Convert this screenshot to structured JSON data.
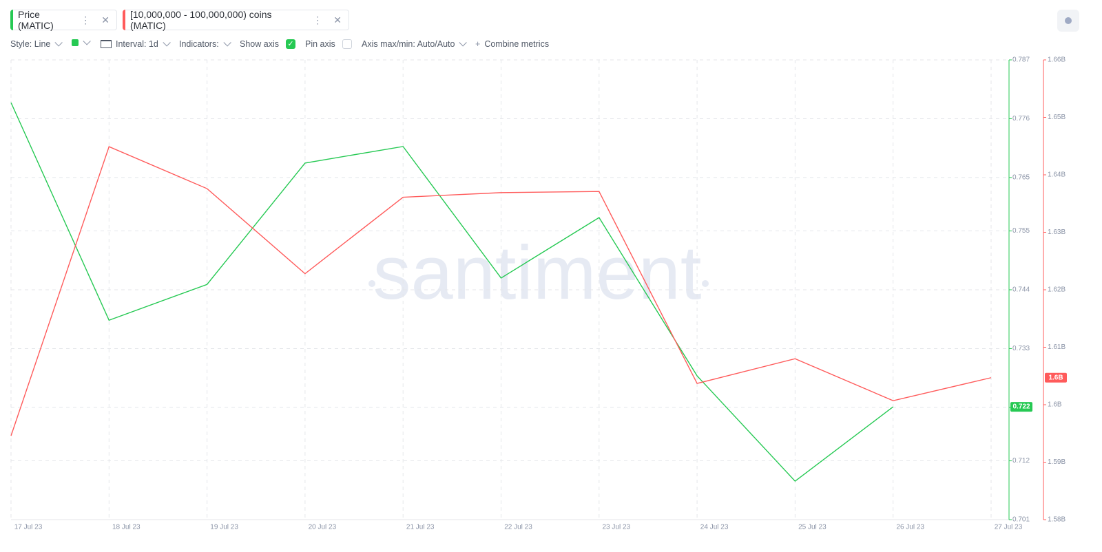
{
  "chart_data": {
    "type": "line",
    "categories": [
      "17 Jul 23",
      "18 Jul 23",
      "19 Jul 23",
      "20 Jul 23",
      "21 Jul 23",
      "22 Jul 23",
      "23 Jul 23",
      "24 Jul 23",
      "25 Jul 23",
      "26 Jul 23",
      "27 Jul 23"
    ],
    "series": [
      {
        "name": "Price (MATIC)",
        "color": "#26c953",
        "axis": "y",
        "values": [
          0.779,
          0.7383,
          0.745,
          0.7677,
          0.7708,
          0.7462,
          0.7575,
          0.7279,
          0.7082,
          0.7221,
          null
        ],
        "value_labels": [
          null,
          null,
          null,
          null,
          null,
          null,
          null,
          null,
          null,
          "0.722",
          null
        ]
      },
      {
        "name": "[10,000,000 - 100,000,000) coins (MATIC)",
        "color": "#ff5b5b",
        "axis": "y2",
        "values": [
          1594600000,
          1644900000,
          1637600000,
          1622800000,
          1636100000,
          1636900000,
          1637100000,
          1603700000,
          1608000000,
          1600700000,
          1604700000
        ],
        "value_labels": [
          null,
          null,
          null,
          null,
          null,
          null,
          null,
          null,
          null,
          null,
          "1.6B"
        ]
      }
    ],
    "ylim": [
      0.701,
      0.787
    ],
    "yticks": [
      0.701,
      0.712,
      0.722,
      0.733,
      0.744,
      0.755,
      0.765,
      0.776,
      0.787
    ],
    "y2lim": [
      1580000000,
      1660000000
    ],
    "y2ticks": [
      {
        "value": 1580000000,
        "label": "1.58B"
      },
      {
        "value": 1590000000,
        "label": "1.59B"
      },
      {
        "value": 1600000000,
        "label": "1.6B"
      },
      {
        "value": 1610000000,
        "label": "1.61B"
      },
      {
        "value": 1620000000,
        "label": "1.62B"
      },
      {
        "value": 1630000000,
        "label": "1.63B"
      },
      {
        "value": 1640000000,
        "label": "1.64B"
      },
      {
        "value": 1650000000,
        "label": "1.65B"
      },
      {
        "value": 1660000000,
        "label": "1.66B"
      }
    ],
    "grid": true,
    "watermark": "santiment"
  },
  "toolbar": {
    "style": "Style: Line",
    "interval": "Interval: 1d",
    "indicators": "Indicators:",
    "show_axis": "Show axis",
    "pin_axis": "Pin axis",
    "axis_maxmin": "Axis max/min: Auto/Auto",
    "combine": "Combine metrics"
  }
}
